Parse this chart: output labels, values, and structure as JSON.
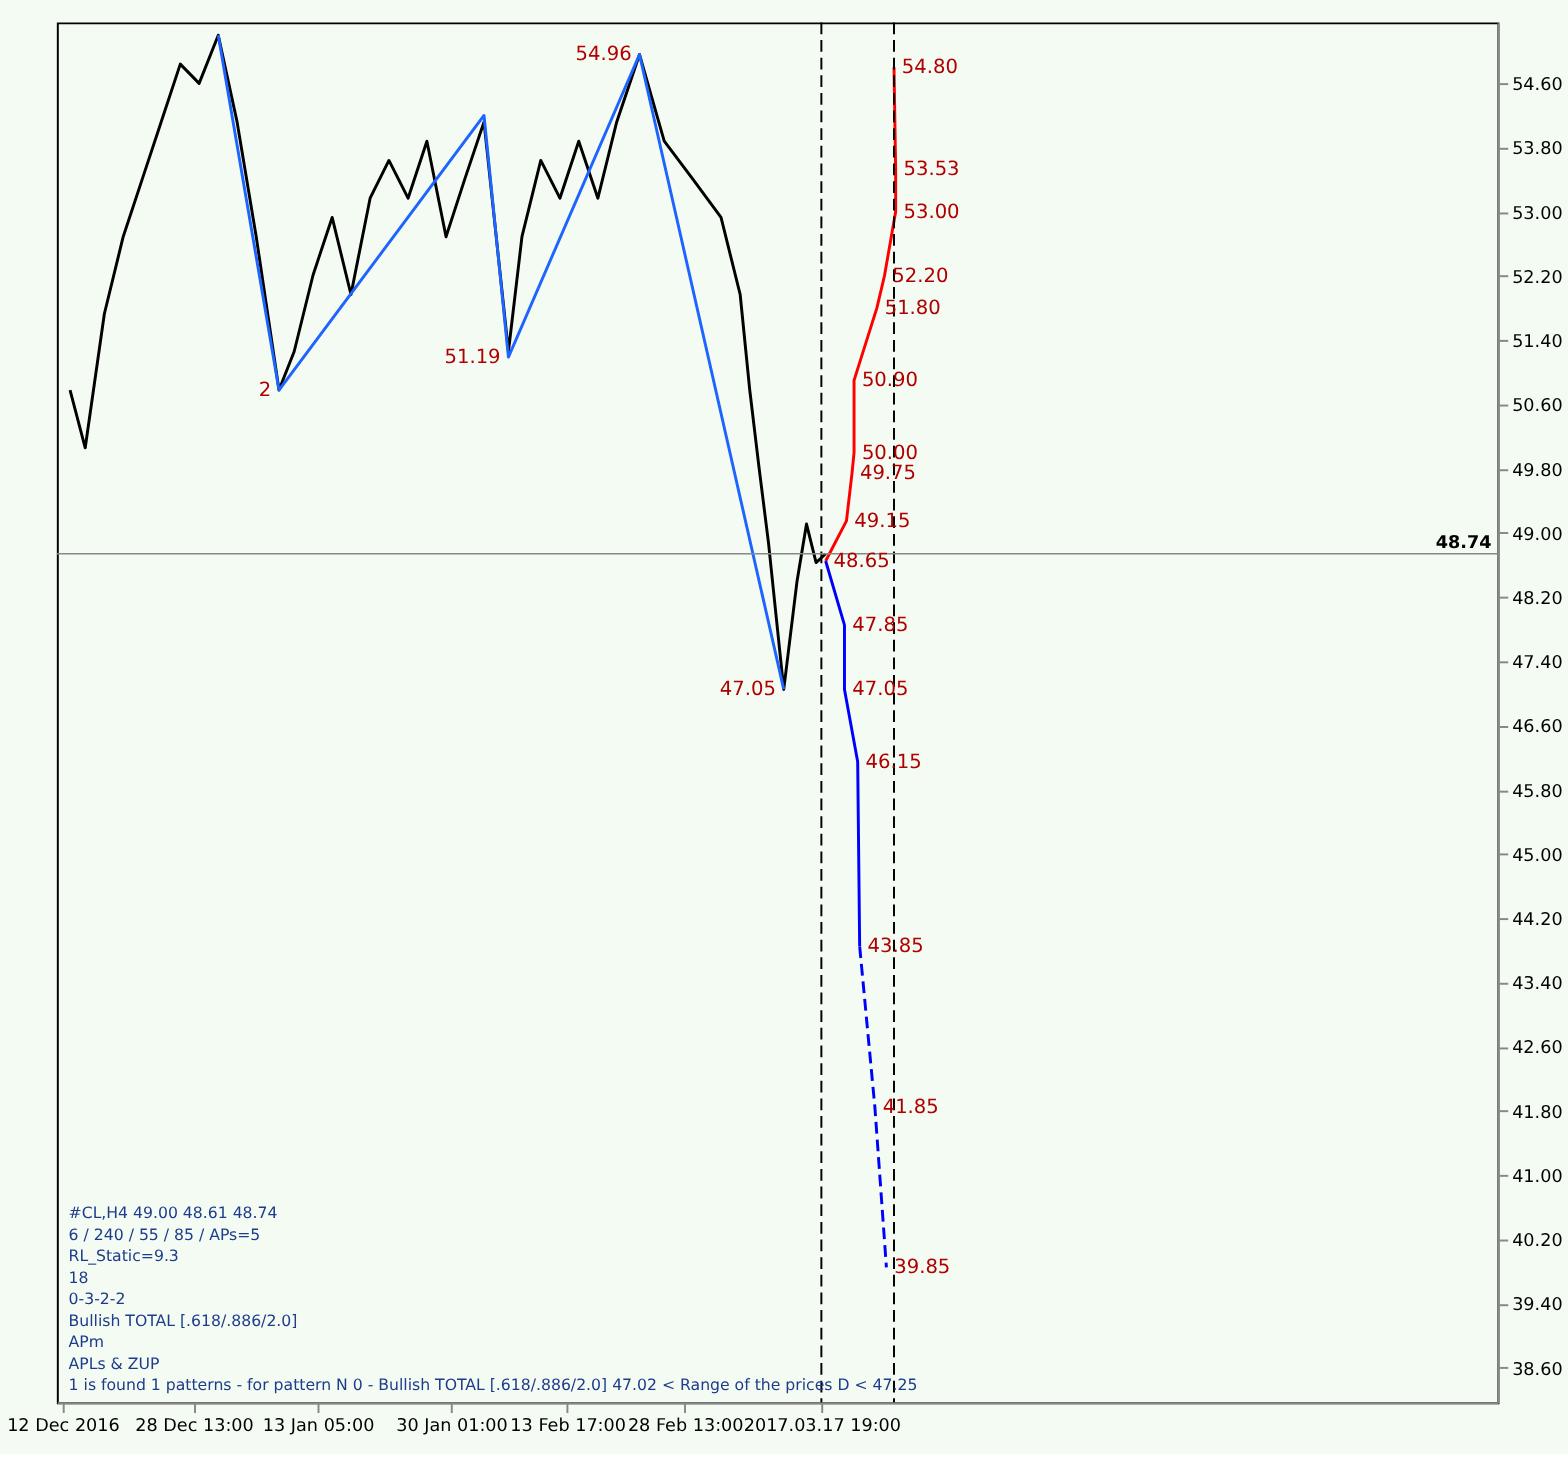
{
  "chart_data": {
    "type": "line",
    "xlim": [
      "2016-12-11T07:00",
      "2017-06-11T03:00"
    ],
    "ylim": [
      38.17,
      55.36
    ],
    "xticks": [
      {
        "value": "2016-12-12T00:00",
        "label": "12 Dec 2016"
      },
      {
        "value": "2016-12-28T13:00",
        "label": "28 Dec 13:00"
      },
      {
        "value": "2017-01-13T05:00",
        "label": "13 Jan 05:00"
      },
      {
        "value": "2017-01-30T01:00",
        "label": "30 Jan 01:00"
      },
      {
        "value": "2017-02-13T17:00",
        "label": "13 Feb 17:00"
      },
      {
        "value": "2017-02-28T13:00",
        "label": "28 Feb 13:00"
      },
      {
        "value": "2017-03-17T19:00",
        "label": "2017.03.17 19:00"
      }
    ],
    "yticks": [
      {
        "value": 38.6,
        "label": "38.60"
      },
      {
        "value": 39.4,
        "label": "39.40"
      },
      {
        "value": 40.2,
        "label": "40.20"
      },
      {
        "value": 41,
        "label": "41.00"
      },
      {
        "value": 41.8,
        "label": "41.80"
      },
      {
        "value": 42.6,
        "label": "42.60"
      },
      {
        "value": 43.4,
        "label": "43.40"
      },
      {
        "value": 44.2,
        "label": "44.20"
      },
      {
        "value": 45,
        "label": "45.00"
      },
      {
        "value": 45.8,
        "label": "45.80"
      },
      {
        "value": 46.6,
        "label": "46.60"
      },
      {
        "value": 47.4,
        "label": "47.40"
      },
      {
        "value": 48.2,
        "label": "48.20"
      },
      {
        "value": 49,
        "label": "49.00"
      },
      {
        "value": 49.8,
        "label": "49.80"
      },
      {
        "value": 50.6,
        "label": "50.60"
      },
      {
        "value": 51.4,
        "label": "51.40"
      },
      {
        "value": 52.2,
        "label": "52.20"
      },
      {
        "value": 53,
        "label": "53.00"
      },
      {
        "value": 53.8,
        "label": "53.80"
      },
      {
        "value": 54.6,
        "label": "54.60"
      }
    ],
    "grid": false,
    "line_style": "solid",
    "series": [
      {
        "color": "#000000",
        "x": [
          "2016-12-12T23:00",
          "2016-12-14T21:00",
          "2016-12-17T07:00",
          "2016-12-19T16:00",
          "2016-12-22T02:00",
          "2016-12-24T11:00",
          "2016-12-26T21:00",
          "2016-12-29T06:00",
          "2016-12-31T16:00",
          "2017-01-03T01:00",
          "2017-01-05T11:00",
          "2017-01-08T08:00",
          "2017-01-10T06:00",
          "2017-01-12T15:00",
          "2017-01-15T01:00",
          "2017-01-17T10:00",
          "2017-01-19T20:00",
          "2017-01-22T05:00",
          "2017-01-24T15:00",
          "2017-01-27T00:00",
          "2017-01-29T10:00",
          "2017-01-31T19:00",
          "2017-02-03T05:00",
          "2017-02-06T07:00",
          "2017-02-08T00:00",
          "2017-02-10T09:00",
          "2017-02-12T19:00",
          "2017-02-15T04:00",
          "2017-02-17T14:00",
          "2017-02-19T23:00",
          "2017-02-22T20:00",
          "2017-02-25T23:00",
          "2017-03-01T13:00",
          "2017-03-05T03:00",
          "2017-03-07T13:00",
          "2017-03-08T18:00",
          "2017-03-09T22:00",
          "2017-03-11T03:00",
          "2017-03-13T01:00",
          "2017-03-14T17:00",
          "2017-03-15T22:00",
          "2017-03-17T03:00",
          "2017-03-18T08:00"
        ],
        "values": [
          50.78,
          50.06,
          51.73,
          52.69,
          53.41,
          54.12,
          54.84,
          54.6,
          55.2,
          54.12,
          52.69,
          50.78,
          51.26,
          52.21,
          52.93,
          51.97,
          53.17,
          53.64,
          53.17,
          53.88,
          52.69,
          53.41,
          54.12,
          51.26,
          52.69,
          53.64,
          53.17,
          53.88,
          53.17,
          54.12,
          54.96,
          53.88,
          53.41,
          52.93,
          51.97,
          50.78,
          49.82,
          48.87,
          47.05,
          48.39,
          49.11,
          48.63,
          48.74
        ]
      },
      {
        "color": "#1e64ff",
        "x": [
          "2016-12-31T16:00",
          "2017-01-08T08:00",
          "2017-02-03T05:00",
          "2017-02-06T07:00",
          "2017-02-22T20:00",
          "2017-03-13T01:00"
        ],
        "values": [
          55.2,
          50.78,
          54.2,
          51.19,
          54.96,
          47.05
        ]
      },
      {
        "color": "#ff0000",
        "x": [
          "2017-03-18T08:00",
          "2017-03-20T23:00",
          "2017-03-21T16:00",
          "2017-03-21T22:00",
          "2017-03-21T22:00",
          "2017-03-24T19:00",
          "2017-03-25T18:00",
          "2017-03-27T04:00",
          "2017-03-27T04:00",
          "2017-03-26T23:00"
        ],
        "values": [
          48.65,
          49.15,
          49.75,
          50.0,
          50.9,
          51.8,
          52.2,
          53.0,
          53.53,
          54.8
        ]
      },
      {
        "color": "#0000ff",
        "x": [
          "2017-03-18T08:00",
          "2017-03-20T17:00",
          "2017-03-20T17:00",
          "2017-03-22T09:00",
          "2017-03-22T15:00"
        ],
        "values": [
          48.65,
          47.85,
          47.05,
          46.15,
          43.85
        ]
      },
      {
        "color": "#0000ff",
        "line_style": "dashed",
        "x": [
          "2017-03-22T15:00",
          "2017-03-24T13:00",
          "2017-03-26T00:00"
        ],
        "values": [
          43.85,
          41.85,
          39.85
        ]
      }
    ],
    "ref_lines": [
      {
        "axis": "x",
        "value": "2017-03-17T19:00",
        "line_style": "dashed",
        "color": "#000000"
      },
      {
        "axis": "x",
        "value": "2017-03-26T23:00",
        "line_style": "dashed",
        "color": "#000000"
      },
      {
        "axis": "y",
        "value": 48.74,
        "label": "48.74",
        "color": "#888888"
      }
    ],
    "annotations": [
      "#CL,H4 49.00 48.61 48.74",
      "6 / 240 / 55 / 85 / APs=5",
      "RL_Static=9.3",
      "18",
      "0-3-2-2",
      "Bullish TOTAL [.618/.886/2.0]",
      "APm",
      "APLs & ZUP",
      "1 is found 1 patterns - for pattern N 0 - Bullish TOTAL [.618/.886/2.0] 47.02 < Range of the prices D < 47.25",
      {
        "text": "54.80",
        "x": "2017-03-26T23:00",
        "y": 54.8
      },
      {
        "text": "53.53",
        "x": "2017-03-27T04:00",
        "y": 53.53
      },
      {
        "text": "53.00",
        "x": "2017-03-27T04:00",
        "y": 53.0
      },
      {
        "text": "52.20",
        "x": "2017-03-25T18:00",
        "y": 52.2
      },
      {
        "text": "51.80",
        "x": "2017-03-24T19:00",
        "y": 51.8
      },
      {
        "text": "50.90",
        "x": "2017-03-21T22:00",
        "y": 50.9
      },
      {
        "text": "50.00",
        "x": "2017-03-21T22:00",
        "y": 50.0
      },
      {
        "text": "49.75",
        "x": "2017-03-21T16:00",
        "y": 49.75
      },
      {
        "text": "49.15",
        "x": "2017-03-20T23:00",
        "y": 49.15
      },
      {
        "text": "48.65",
        "x": "2017-03-18T08:00",
        "y": 48.65
      },
      {
        "text": "47.85",
        "x": "2017-03-20T17:00",
        "y": 47.85
      },
      {
        "text": "47.05",
        "x": "2017-03-20T17:00",
        "y": 47.05
      },
      {
        "text": "46.15",
        "x": "2017-03-22T09:00",
        "y": 46.15
      },
      {
        "text": "43.85",
        "x": "2017-03-22T15:00",
        "y": 43.85
      },
      {
        "text": "41.85",
        "x": "2017-03-24T13:00",
        "y": 41.85
      },
      {
        "text": "39.85",
        "x": "2017-03-26T00:00",
        "y": 39.85
      },
      {
        "text": "51.19",
        "x": "2017-02-06T07:00",
        "y": 51.19
      },
      {
        "text": "47.05",
        "x": "2017-03-13T01:00",
        "y": 47.05
      },
      {
        "text": "54.96",
        "x": "2017-02-22T20:00",
        "y": 54.96
      },
      {
        "text": "2",
        "x": "2017-01-08T08:00",
        "y": 50.78
      }
    ]
  }
}
